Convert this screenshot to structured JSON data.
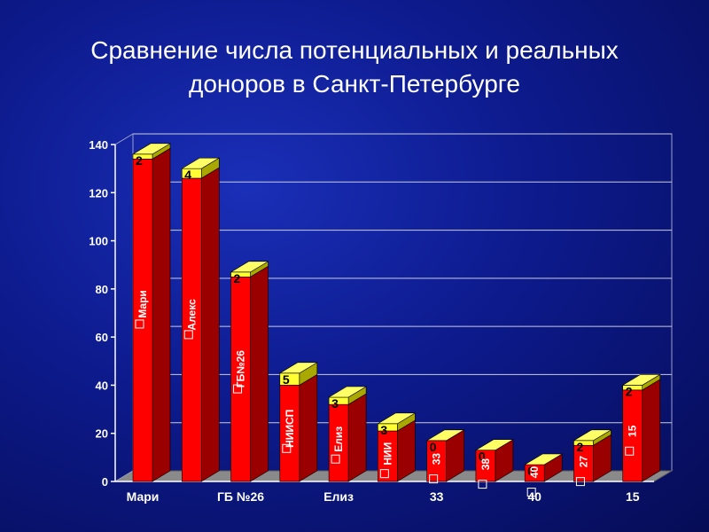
{
  "title": {
    "line1": "Сравнение числа потенциальных и реальных",
    "line2": "доноров в Санкт-Петербурге"
  },
  "chart_data": {
    "type": "bar",
    "style": "3d-stacked",
    "categories": [
      "Мари",
      "",
      "ГБ №26",
      "",
      "Елиз",
      "",
      "33",
      "",
      "40",
      "",
      "15"
    ],
    "bar_labels": [
      "Мари",
      "Алекс",
      "ГБ№26",
      "НИИСП",
      "Елиз",
      "НИИ",
      "33",
      "38",
      "40",
      "27",
      "15"
    ],
    "series": [
      {
        "values": [
          134,
          126,
          85,
          40,
          32,
          21,
          17,
          13,
          7,
          15,
          38
        ],
        "color": "#ff0000"
      },
      {
        "values": [
          2,
          4,
          2,
          5,
          3,
          3,
          0,
          0,
          0,
          2,
          2
        ],
        "color": "#ffff33"
      }
    ],
    "ylim": [
      0,
      140
    ],
    "yticks": [
      0,
      20,
      40,
      60,
      80,
      100,
      120,
      140
    ],
    "grid": true,
    "legend": false
  }
}
